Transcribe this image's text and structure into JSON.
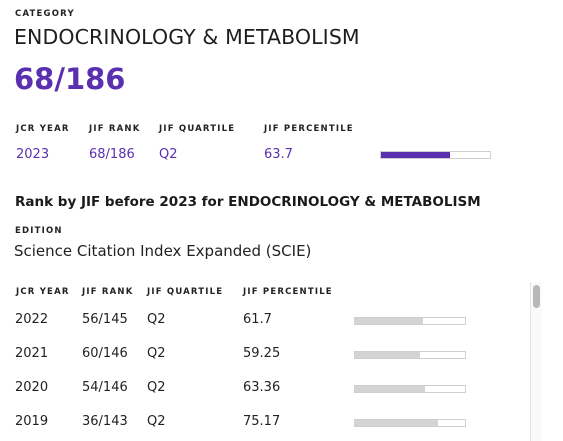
{
  "category": {
    "label": "CATEGORY",
    "name": "ENDOCRINOLOGY & METABOLISM",
    "rank": "68/186"
  },
  "current": {
    "headers": {
      "jcr_year": "JCR YEAR",
      "jif_rank": "JIF RANK",
      "jif_quartile": "JIF QUARTILE",
      "jif_percentile": "JIF PERCENTILE"
    },
    "values": {
      "jcr_year": "2023",
      "jif_rank": "68/186",
      "jif_quartile": "Q2",
      "jif_percentile": "63.7",
      "percentile_value": 63.7
    }
  },
  "history": {
    "title": "Rank by JIF before 2023 for ENDOCRINOLOGY & METABOLISM",
    "edition_label": "EDITION",
    "edition_value": "Science Citation Index Expanded (SCIE)",
    "headers": {
      "jcr_year": "JCR YEAR",
      "jif_rank": "JIF RANK",
      "jif_quartile": "JIF QUARTILE",
      "jif_percentile": "JIF PERCENTILE"
    },
    "rows": [
      {
        "year": "2022",
        "rank": "56/145",
        "quartile": "Q2",
        "percentile": "61.7",
        "percentile_value": 61.7
      },
      {
        "year": "2021",
        "rank": "60/146",
        "quartile": "Q2",
        "percentile": "59.25",
        "percentile_value": 59.25
      },
      {
        "year": "2020",
        "rank": "54/146",
        "quartile": "Q2",
        "percentile": "63.36",
        "percentile_value": 63.36
      },
      {
        "year": "2019",
        "rank": "36/143",
        "quartile": "Q2",
        "percentile": "75.17",
        "percentile_value": 75.17
      }
    ]
  },
  "colors": {
    "accent": "#5a2fb0",
    "bar_muted": "#d4d4d4"
  }
}
